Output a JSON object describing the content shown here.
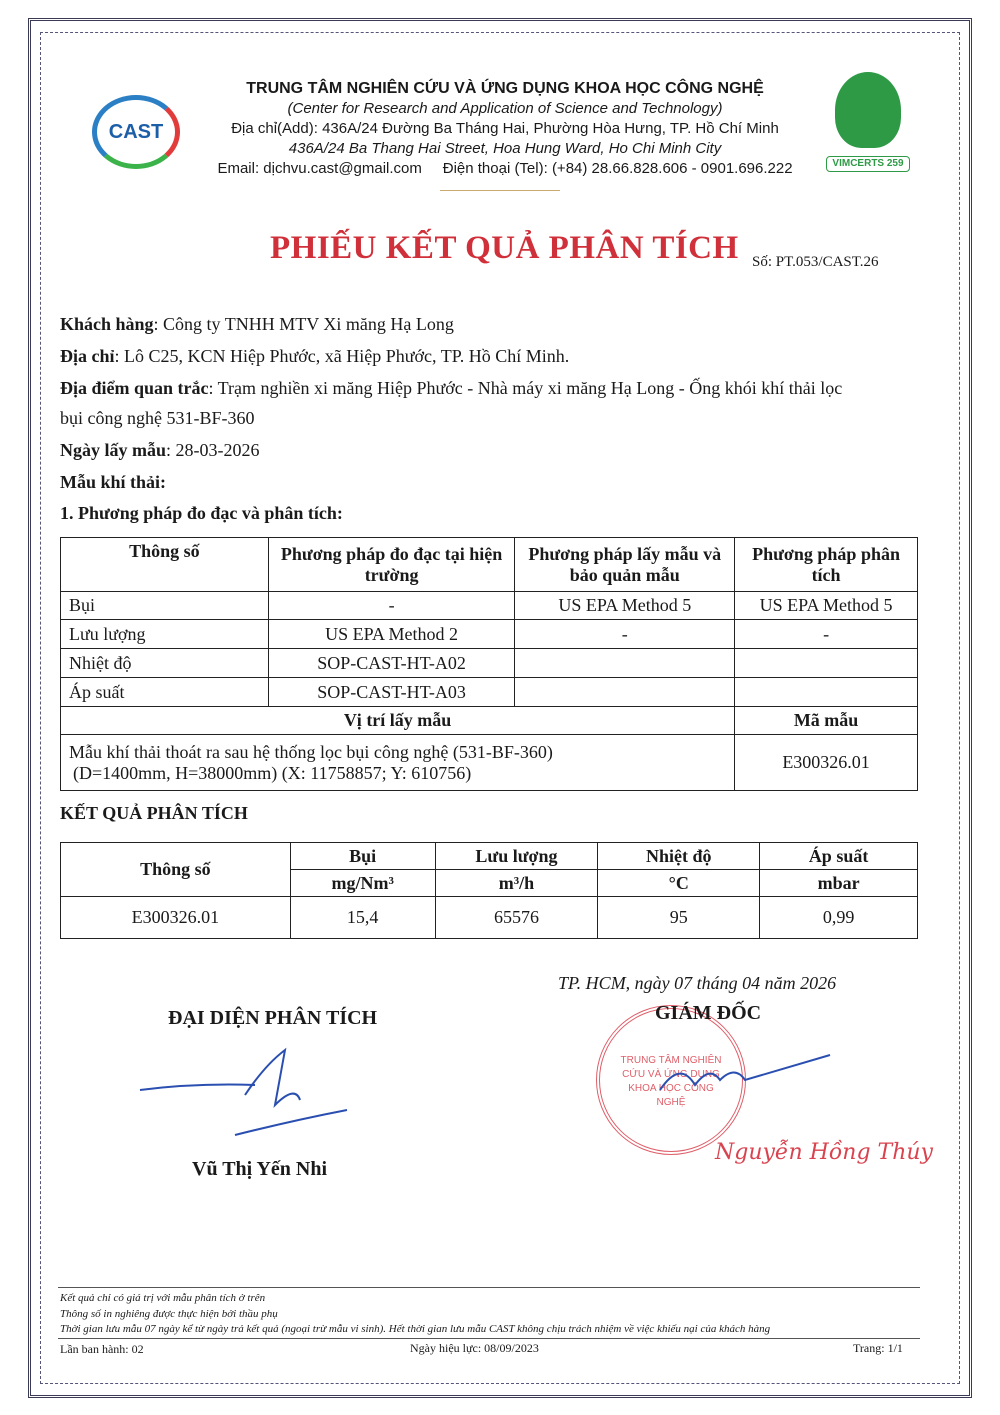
{
  "header": {
    "org_name": "TRUNG TÂM NGHIÊN CỨU VÀ ỨNG DỤNG KHOA HỌC CÔNG NGHỆ",
    "org_name_en": "(Center for Research and Application of Science and Technology)",
    "address": "Địa chỉ(Add): 436A/24 Đường Ba Tháng Hai, Phường Hòa Hưng, TP. Hồ Chí Minh",
    "address_en": "436A/24 Ba Thang Hai Street, Hoa Hung Ward, Ho Chi Minh City",
    "contact": "Email: dịchvu.cast@gmail.com     Điện thoại (Tel): (+84) 28.66.828.606 - 0901.696.222",
    "logo_left": "CAST",
    "logo_right": "VIMCERTS 259"
  },
  "title": "PHIẾU KẾT QUẢ PHÂN TÍCH",
  "number": "Số: PT.053/CAST.26",
  "info": [
    {
      "label": "Khách hàng",
      "value": ": Công ty TNHH MTV Xi măng Hạ Long"
    },
    {
      "label": "Địa chỉ",
      "value": ": Lô C25, KCN Hiệp Phước, xã Hiệp Phước, TP. Hồ Chí Minh."
    },
    {
      "label": "Địa điểm quan trắc",
      "value": ": Trạm nghiền xi măng Hiệp Phước - Nhà máy xi măng Hạ Long - Ống khói khí thải lọc",
      "cont": "bụi công nghệ 531-BF-360"
    },
    {
      "label": "Ngày lấy mẫu",
      "value": ": 28-03-2026"
    },
    {
      "label": "Mẫu khí thải:",
      "value": ""
    }
  ],
  "section1": "1.  Phương pháp đo đạc và phân tích:",
  "methods": {
    "headers": [
      "Thông số",
      "Phương pháp đo đạc tại hiện trường",
      "Phương pháp lấy mẫu và bảo quản mẫu",
      "Phương pháp phân tích"
    ],
    "rows": [
      [
        "Bụi",
        "-",
        "US EPA Method 5",
        "US EPA Method 5"
      ],
      [
        "Lưu lượng",
        "US EPA Method 2",
        "-",
        "-"
      ],
      [
        "Nhiệt độ",
        "SOP-CAST-HT-A02",
        "",
        ""
      ],
      [
        "Áp suất",
        "SOP-CAST-HT-A03",
        "",
        ""
      ]
    ],
    "location_header": "Vị trí lấy mẫu",
    "code_header": "Mã mẫu",
    "location_line1": "Mẫu khí thải thoát ra sau hệ thống lọc bụi công nghệ (531-BF-360)",
    "location_line2": "(D=1400mm, H=38000mm) (X: 11758857; Y: 610756)",
    "code": "E300326.01"
  },
  "section2": "KẾT QUẢ PHÂN TÍCH",
  "results": {
    "param_header": "Thông số",
    "columns": [
      {
        "name": "Bụi",
        "unit": "mg/Nm³"
      },
      {
        "name": "Lưu lượng",
        "unit": "m³/h"
      },
      {
        "name": "Nhiệt độ",
        "unit": "°C"
      },
      {
        "name": "Áp suất",
        "unit": "mbar"
      }
    ],
    "row": {
      "code": "E300326.01",
      "values": [
        "15,4",
        "65576",
        "95",
        "0,99"
      ]
    }
  },
  "date_line": "TP. HCM, ngày 07 tháng 04 năm 2026",
  "left_sign": {
    "title": "ĐẠI DIỆN PHÂN TÍCH",
    "name": "Vũ Thị Yến Nhi"
  },
  "right_sign": {
    "title": "GIÁM ĐỐC",
    "name": "Nguyễn Hồng Thúy",
    "stamp": "TRUNG TÂM NGHIÊN CỨU VÀ ỨNG DỤNG KHOA HỌC CÔNG NGHỆ"
  },
  "footer": {
    "notes": [
      "Kết quả chỉ có giá trị với mẫu phân tích ở trên",
      "Thông số in nghiêng được thực hiện bởi thầu phụ",
      "Thời gian lưu mẫu 07 ngày kể từ ngày trả kết quả (ngoại trừ mẫu vi sinh).  Hết thời gian lưu mẫu CAST không chịu trách nhiệm về việc khiếu nại của khách hàng"
    ],
    "edition": "Lần ban hành: 02",
    "effective": "Ngày hiệu lực: 08/09/2023",
    "page": "Trang: 1/1"
  },
  "colors": {
    "title": "#d0303a",
    "stamp": "#d9434f",
    "signature": "#2a4fb0"
  }
}
